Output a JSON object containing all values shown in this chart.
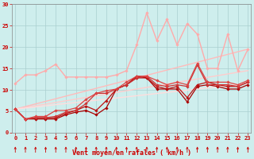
{
  "title": "",
  "xlabel": "Vent moyen/en rafales ( km/h )",
  "xlim": [
    0,
    23
  ],
  "ylim": [
    0,
    30
  ],
  "xticks": [
    0,
    1,
    2,
    3,
    4,
    5,
    6,
    7,
    8,
    9,
    10,
    11,
    12,
    13,
    14,
    15,
    16,
    17,
    18,
    19,
    20,
    21,
    22,
    23
  ],
  "yticks": [
    0,
    5,
    10,
    15,
    20,
    25,
    30
  ],
  "background_color": "#ceeeed",
  "grid_color": "#aacfcf",
  "series": [
    {
      "x": [
        0,
        1,
        2,
        3,
        4,
        5,
        6,
        7,
        8,
        9,
        10,
        11,
        12,
        13,
        14,
        15,
        16,
        17,
        18,
        19,
        20,
        21,
        22,
        23
      ],
      "y": [
        5.5,
        3.2,
        3.2,
        3.2,
        3.2,
        4.2,
        4.8,
        5.2,
        4.2,
        5.8,
        10.2,
        11.2,
        13.2,
        12.8,
        10.2,
        10.2,
        10.2,
        7.2,
        10.8,
        11.2,
        10.8,
        10.2,
        10.2,
        11.2
      ],
      "color": "#aa0000",
      "lw": 0.9,
      "marker": "D",
      "ms": 1.8
    },
    {
      "x": [
        0,
        1,
        2,
        3,
        4,
        5,
        6,
        7,
        8,
        9,
        10,
        11,
        12,
        13,
        14,
        15,
        16,
        17,
        18,
        19,
        20,
        21,
        22,
        23
      ],
      "y": [
        5.5,
        3.2,
        3.5,
        3.5,
        3.5,
        4.5,
        5.2,
        6.2,
        5.2,
        7.5,
        10.2,
        11.2,
        12.8,
        12.8,
        10.8,
        10.2,
        10.8,
        8.2,
        11.2,
        11.8,
        11.2,
        10.8,
        10.8,
        11.8
      ],
      "color": "#bb1111",
      "lw": 0.9,
      "marker": "D",
      "ms": 1.8
    },
    {
      "x": [
        0,
        1,
        2,
        3,
        4,
        5,
        6,
        7,
        8,
        9,
        10,
        11,
        12,
        13,
        14,
        15,
        16,
        17,
        18,
        19,
        20,
        21,
        22,
        23
      ],
      "y": [
        5.5,
        3.2,
        3.5,
        3.5,
        3.8,
        4.8,
        5.2,
        6.8,
        9.2,
        9.2,
        10.2,
        11.2,
        12.8,
        13.2,
        11.2,
        10.8,
        11.2,
        10.8,
        15.8,
        11.2,
        11.2,
        11.2,
        10.8,
        11.8
      ],
      "color": "#cc3333",
      "lw": 0.9,
      "marker": "D",
      "ms": 1.8
    },
    {
      "x": [
        0,
        1,
        2,
        3,
        4,
        5,
        6,
        7,
        8,
        9,
        10,
        11,
        12,
        13,
        14,
        15,
        16,
        17,
        18,
        19,
        20,
        21,
        22,
        23
      ],
      "y": [
        5.5,
        3.2,
        3.8,
        3.8,
        5.2,
        5.2,
        5.8,
        7.8,
        9.2,
        9.8,
        10.2,
        11.8,
        13.2,
        13.2,
        12.2,
        11.2,
        11.8,
        11.2,
        16.2,
        11.8,
        11.8,
        11.8,
        11.2,
        12.2
      ],
      "color": "#dd4444",
      "lw": 0.9,
      "marker": "D",
      "ms": 1.8
    },
    {
      "x": [
        0,
        1,
        2,
        3,
        4,
        5,
        6,
        7,
        8,
        9,
        10,
        11,
        12,
        13,
        14,
        15,
        16,
        17,
        18,
        19,
        20,
        21,
        22,
        23
      ],
      "y": [
        11.5,
        13.5,
        13.5,
        14.5,
        16.0,
        13.0,
        13.0,
        13.0,
        13.0,
        13.0,
        13.5,
        14.5,
        20.5,
        28.0,
        21.5,
        26.5,
        20.5,
        25.5,
        23.0,
        15.0,
        15.0,
        23.0,
        14.5,
        19.5
      ],
      "color": "#ffaaaa",
      "lw": 1.0,
      "marker": "D",
      "ms": 1.8
    },
    {
      "x": [
        0,
        23
      ],
      "y": [
        5.5,
        19.5
      ],
      "color": "#ffbbbb",
      "lw": 1.0,
      "marker": null,
      "ms": 0
    },
    {
      "x": [
        0,
        23
      ],
      "y": [
        5.5,
        14.5
      ],
      "color": "#ffcccc",
      "lw": 1.0,
      "marker": null,
      "ms": 0
    },
    {
      "x": [
        0,
        23
      ],
      "y": [
        5.5,
        11.5
      ],
      "color": "#ffdddd",
      "lw": 1.0,
      "marker": null,
      "ms": 0
    }
  ],
  "wind_arrow_color": "#cc0000",
  "xlabel_color": "#cc0000",
  "tick_color": "#cc0000",
  "tick_fontsize": 5,
  "xlabel_fontsize": 6
}
